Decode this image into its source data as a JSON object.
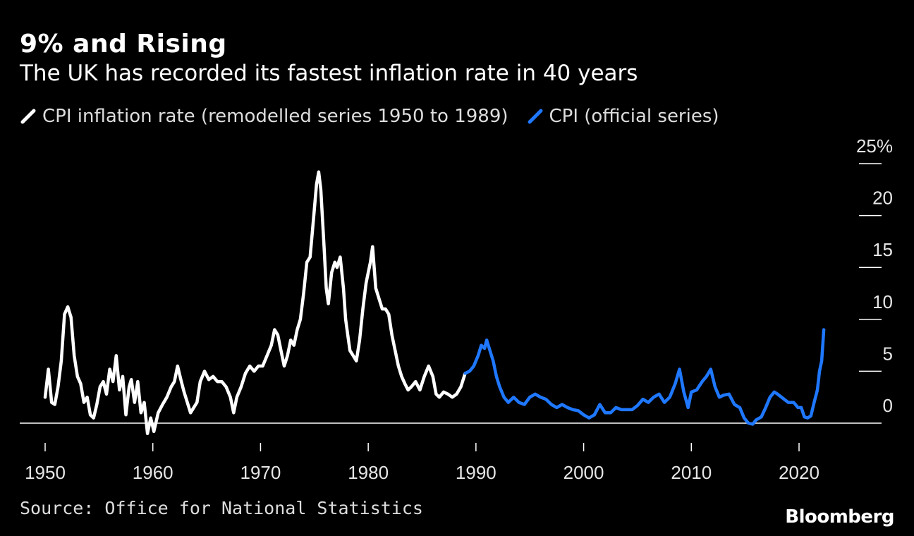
{
  "chart_data": {
    "type": "line",
    "title": "9% and Rising",
    "subtitle": "The UK has recorded its fastest inflation rate in 40 years",
    "xlabel": "",
    "ylabel": "",
    "xlim": [
      1950,
      2022.5
    ],
    "ylim": [
      -2,
      25
    ],
    "x_ticks": [
      1950,
      1960,
      1970,
      1980,
      1990,
      2000,
      2010,
      2020
    ],
    "x_tick_labels": [
      "1950",
      "1960",
      "1970",
      "1980",
      "1990",
      "2000",
      "2010",
      "2020"
    ],
    "y_ticks": [
      0,
      5,
      10,
      15,
      20,
      25
    ],
    "y_tick_labels": [
      "0",
      "5",
      "10",
      "15",
      "20",
      "25%"
    ],
    "grid": false,
    "legend_position": "top-left",
    "series": [
      {
        "name": "CPI inflation rate (remodelled series 1950 to 1989)",
        "color": "#ffffff",
        "points": [
          [
            1950.0,
            2.5
          ],
          [
            1950.3,
            5.2
          ],
          [
            1950.6,
            2.0
          ],
          [
            1950.9,
            1.8
          ],
          [
            1951.2,
            3.5
          ],
          [
            1951.5,
            6.0
          ],
          [
            1951.8,
            10.5
          ],
          [
            1952.1,
            11.2
          ],
          [
            1952.4,
            10.2
          ],
          [
            1952.7,
            6.5
          ],
          [
            1953.0,
            4.5
          ],
          [
            1953.3,
            3.8
          ],
          [
            1953.6,
            2.0
          ],
          [
            1953.9,
            2.5
          ],
          [
            1954.2,
            0.8
          ],
          [
            1954.5,
            0.5
          ],
          [
            1954.8,
            1.8
          ],
          [
            1955.1,
            3.5
          ],
          [
            1955.4,
            4.0
          ],
          [
            1955.7,
            2.8
          ],
          [
            1956.0,
            5.2
          ],
          [
            1956.3,
            4.0
          ],
          [
            1956.6,
            6.5
          ],
          [
            1956.9,
            3.2
          ],
          [
            1957.2,
            4.5
          ],
          [
            1957.5,
            0.8
          ],
          [
            1957.8,
            3.5
          ],
          [
            1958.0,
            4.2
          ],
          [
            1958.3,
            2.0
          ],
          [
            1958.6,
            4.0
          ],
          [
            1958.9,
            1.0
          ],
          [
            1959.2,
            2.0
          ],
          [
            1959.5,
            -1.0
          ],
          [
            1959.8,
            0.5
          ],
          [
            1960.1,
            -0.8
          ],
          [
            1960.5,
            1.0
          ],
          [
            1960.9,
            1.8
          ],
          [
            1961.3,
            2.5
          ],
          [
            1961.7,
            3.5
          ],
          [
            1962.0,
            4.0
          ],
          [
            1962.3,
            5.5
          ],
          [
            1962.6,
            4.2
          ],
          [
            1962.9,
            3.0
          ],
          [
            1963.2,
            2.0
          ],
          [
            1963.5,
            1.0
          ],
          [
            1963.8,
            1.5
          ],
          [
            1964.1,
            2.0
          ],
          [
            1964.4,
            4.0
          ],
          [
            1964.8,
            5.0
          ],
          [
            1965.2,
            4.2
          ],
          [
            1965.6,
            4.5
          ],
          [
            1966.0,
            4.0
          ],
          [
            1966.4,
            4.0
          ],
          [
            1966.8,
            3.5
          ],
          [
            1967.2,
            2.5
          ],
          [
            1967.5,
            1.0
          ],
          [
            1967.8,
            2.5
          ],
          [
            1968.2,
            3.5
          ],
          [
            1968.6,
            4.8
          ],
          [
            1969.0,
            5.5
          ],
          [
            1969.4,
            5.0
          ],
          [
            1969.8,
            5.5
          ],
          [
            1970.2,
            5.5
          ],
          [
            1970.6,
            6.5
          ],
          [
            1971.0,
            7.5
          ],
          [
            1971.3,
            9.0
          ],
          [
            1971.6,
            8.5
          ],
          [
            1971.9,
            7.0
          ],
          [
            1972.2,
            5.5
          ],
          [
            1972.5,
            6.5
          ],
          [
            1972.8,
            8.0
          ],
          [
            1973.1,
            7.5
          ],
          [
            1973.4,
            9.0
          ],
          [
            1973.7,
            10.0
          ],
          [
            1974.0,
            12.5
          ],
          [
            1974.3,
            15.5
          ],
          [
            1974.6,
            16.0
          ],
          [
            1974.9,
            19.5
          ],
          [
            1975.2,
            23.0
          ],
          [
            1975.4,
            24.2
          ],
          [
            1975.6,
            22.5
          ],
          [
            1975.9,
            17.0
          ],
          [
            1976.1,
            13.0
          ],
          [
            1976.3,
            11.5
          ],
          [
            1976.6,
            14.5
          ],
          [
            1976.9,
            15.5
          ],
          [
            1977.1,
            15.0
          ],
          [
            1977.4,
            16.0
          ],
          [
            1977.7,
            13.0
          ],
          [
            1977.9,
            10.0
          ],
          [
            1978.1,
            8.5
          ],
          [
            1978.3,
            7.0
          ],
          [
            1978.6,
            6.5
          ],
          [
            1978.9,
            6.0
          ],
          [
            1979.2,
            8.0
          ],
          [
            1979.5,
            11.0
          ],
          [
            1979.8,
            13.5
          ],
          [
            1980.0,
            14.5
          ],
          [
            1980.2,
            15.5
          ],
          [
            1980.4,
            17.0
          ],
          [
            1980.7,
            13.0
          ],
          [
            1981.0,
            12.0
          ],
          [
            1981.3,
            11.0
          ],
          [
            1981.6,
            11.0
          ],
          [
            1981.9,
            10.5
          ],
          [
            1982.2,
            8.5
          ],
          [
            1982.5,
            7.0
          ],
          [
            1982.8,
            5.5
          ],
          [
            1983.1,
            4.5
          ],
          [
            1983.4,
            3.8
          ],
          [
            1983.7,
            3.2
          ],
          [
            1984.0,
            3.5
          ],
          [
            1984.4,
            4.0
          ],
          [
            1984.8,
            3.2
          ],
          [
            1985.2,
            4.5
          ],
          [
            1985.6,
            5.5
          ],
          [
            1986.0,
            4.5
          ],
          [
            1986.3,
            2.8
          ],
          [
            1986.6,
            2.5
          ],
          [
            1987.0,
            3.0
          ],
          [
            1987.4,
            2.8
          ],
          [
            1987.8,
            2.5
          ],
          [
            1988.2,
            2.8
          ],
          [
            1988.6,
            3.5
          ],
          [
            1989.0,
            4.8
          ]
        ]
      },
      {
        "name": "CPI (official series)",
        "color": "#1f78ff",
        "points": [
          [
            1989.0,
            4.8
          ],
          [
            1989.4,
            5.0
          ],
          [
            1989.8,
            5.5
          ],
          [
            1990.2,
            6.5
          ],
          [
            1990.5,
            7.5
          ],
          [
            1990.8,
            7.2
          ],
          [
            1991.0,
            8.0
          ],
          [
            1991.3,
            7.0
          ],
          [
            1991.6,
            6.0
          ],
          [
            1991.9,
            4.5
          ],
          [
            1992.2,
            3.5
          ],
          [
            1992.6,
            2.5
          ],
          [
            1993.0,
            2.0
          ],
          [
            1993.5,
            2.5
          ],
          [
            1994.0,
            2.0
          ],
          [
            1994.5,
            1.8
          ],
          [
            1995.0,
            2.5
          ],
          [
            1995.5,
            2.8
          ],
          [
            1996.0,
            2.5
          ],
          [
            1996.5,
            2.3
          ],
          [
            1997.0,
            1.8
          ],
          [
            1997.5,
            1.5
          ],
          [
            1998.0,
            1.8
          ],
          [
            1998.5,
            1.5
          ],
          [
            1999.0,
            1.3
          ],
          [
            1999.5,
            1.2
          ],
          [
            2000.0,
            0.8
          ],
          [
            2000.5,
            0.5
          ],
          [
            2001.0,
            0.8
          ],
          [
            2001.5,
            1.8
          ],
          [
            2002.0,
            1.0
          ],
          [
            2002.5,
            1.0
          ],
          [
            2003.0,
            1.5
          ],
          [
            2003.5,
            1.3
          ],
          [
            2004.0,
            1.3
          ],
          [
            2004.5,
            1.3
          ],
          [
            2005.0,
            1.7
          ],
          [
            2005.5,
            2.3
          ],
          [
            2006.0,
            2.0
          ],
          [
            2006.5,
            2.5
          ],
          [
            2007.0,
            2.8
          ],
          [
            2007.5,
            2.0
          ],
          [
            2008.0,
            2.5
          ],
          [
            2008.5,
            3.8
          ],
          [
            2008.9,
            5.2
          ],
          [
            2009.3,
            3.0
          ],
          [
            2009.7,
            1.5
          ],
          [
            2010.0,
            3.0
          ],
          [
            2010.5,
            3.2
          ],
          [
            2011.0,
            4.0
          ],
          [
            2011.4,
            4.5
          ],
          [
            2011.8,
            5.2
          ],
          [
            2012.2,
            3.5
          ],
          [
            2012.6,
            2.5
          ],
          [
            2013.0,
            2.7
          ],
          [
            2013.5,
            2.8
          ],
          [
            2014.0,
            1.8
          ],
          [
            2014.5,
            1.5
          ],
          [
            2014.9,
            0.5
          ],
          [
            2015.3,
            0.0
          ],
          [
            2015.7,
            -0.1
          ],
          [
            2016.0,
            0.3
          ],
          [
            2016.5,
            0.6
          ],
          [
            2016.9,
            1.5
          ],
          [
            2017.3,
            2.5
          ],
          [
            2017.7,
            3.0
          ],
          [
            2018.0,
            2.8
          ],
          [
            2018.5,
            2.4
          ],
          [
            2019.0,
            2.0
          ],
          [
            2019.5,
            2.0
          ],
          [
            2019.9,
            1.5
          ],
          [
            2020.2,
            1.5
          ],
          [
            2020.5,
            0.6
          ],
          [
            2020.8,
            0.5
          ],
          [
            2021.1,
            0.7
          ],
          [
            2021.4,
            2.0
          ],
          [
            2021.7,
            3.2
          ],
          [
            2021.9,
            5.0
          ],
          [
            2022.1,
            6.0
          ],
          [
            2022.3,
            9.0
          ]
        ]
      }
    ]
  },
  "source_text": "Source: Office for National Statistics",
  "brand": "Bloomberg",
  "icons": {
    "legend_swatch": "slash-line-icon"
  }
}
